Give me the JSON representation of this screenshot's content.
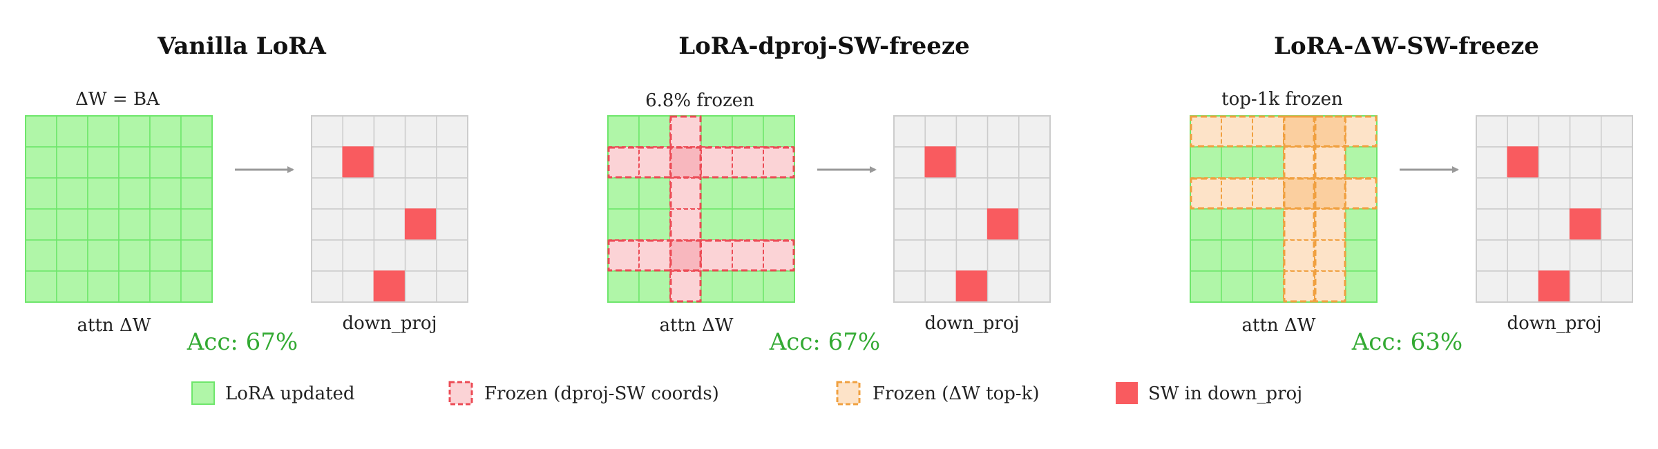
{
  "colors": {
    "lora_fill": "#b0f6a8",
    "lora_stroke": "#6ee66b",
    "grid_fill": "#f0f0f0",
    "grid_stroke": "#cccccc",
    "sw_fill": "#f95b5f",
    "red_frozen_fill": "#fbd3d6",
    "red_frozen_stroke": "#ec4b55",
    "red_overlap_fill": "#f8b7be",
    "orange_frozen_fill": "#fde3c8",
    "orange_frozen_stroke": "#f0a040",
    "orange_overlap_fill": "#fbcf9f",
    "arrow": "#999999",
    "acc_text": "#33aa33"
  },
  "panels": [
    {
      "title": "Vanilla LoRA",
      "top_label": "ΔW = BA",
      "attn_label": "attn ΔW",
      "acc_label": "Acc: 67%",
      "down_label": "down_proj",
      "frozen_style": "none",
      "frozen_rows": [],
      "frozen_cols": [],
      "sw_cells": [
        [
          1,
          1
        ],
        [
          3,
          3
        ],
        [
          5,
          2
        ]
      ]
    },
    {
      "title": "LoRA-dproj-SW-freeze",
      "top_label": "6.8% frozen",
      "attn_label": "attn ΔW",
      "acc_label": "Acc: 67%",
      "down_label": "down_proj",
      "frozen_style": "red",
      "frozen_rows": [
        1,
        4
      ],
      "frozen_cols": [
        2
      ],
      "sw_cells": [
        [
          1,
          1
        ],
        [
          3,
          3
        ],
        [
          5,
          2
        ]
      ]
    },
    {
      "title": "LoRA-ΔW-SW-freeze",
      "top_label": "top-1k frozen",
      "attn_label": "attn ΔW",
      "acc_label": "Acc: 63%",
      "down_label": "down_proj",
      "frozen_style": "orange",
      "frozen_rows": [
        0,
        2
      ],
      "frozen_cols": [
        3,
        4
      ],
      "sw_cells": [
        [
          1,
          1
        ],
        [
          3,
          3
        ],
        [
          5,
          2
        ]
      ]
    }
  ],
  "legend": [
    {
      "label": "LoRA updated",
      "swatch": "lora"
    },
    {
      "label": "Frozen (dproj-SW coords)",
      "swatch": "red"
    },
    {
      "label": "Frozen (ΔW top-k)",
      "swatch": "orange"
    },
    {
      "label": "SW in down_proj",
      "swatch": "sw"
    }
  ]
}
